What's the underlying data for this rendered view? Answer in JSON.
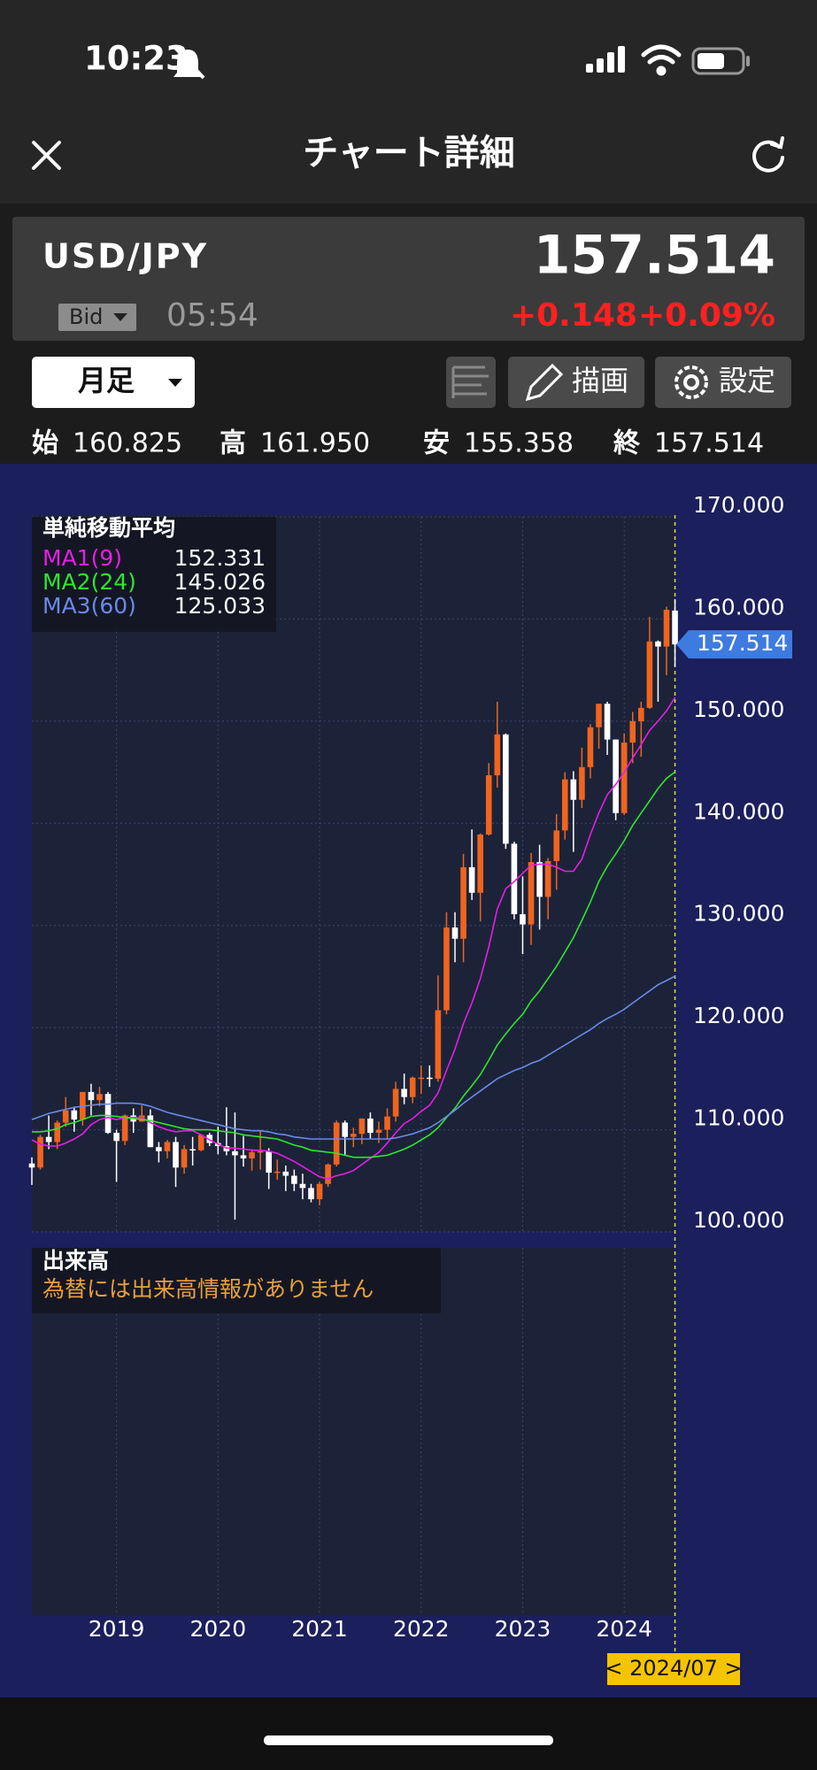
{
  "status_bar": {
    "time": "10:23"
  },
  "header": {
    "title": "チャート詳細"
  },
  "quote": {
    "symbol": "USD/JPY",
    "price": "157.514",
    "side": "Bid",
    "time": "05:54",
    "change": "+0.148",
    "change_pct": "+0.09%"
  },
  "toolbar": {
    "period": "月足",
    "draw": "描画",
    "settings": "設定"
  },
  "ohlc": [
    {
      "label": "始",
      "value": "160.825"
    },
    {
      "label": "高",
      "value": "161.950"
    },
    {
      "label": "安",
      "value": "155.358"
    },
    {
      "label": "終",
      "value": "157.514"
    }
  ],
  "chart_data": {
    "type": "candlestick",
    "legend_title": "単純移動平均",
    "volume_title": "出来高",
    "volume_note": "為替には出来高情報がありません",
    "cursor_label": "< 2024/07 >",
    "up_color": "#f0641e",
    "down_color": "#ffffff",
    "grid": true,
    "ylim": [
      100,
      170
    ],
    "yticks": [
      {
        "value": 100,
        "label": "100.000"
      },
      {
        "value": 110,
        "label": "110.000"
      },
      {
        "value": 120,
        "label": "120.000"
      },
      {
        "value": 130,
        "label": "130.000"
      },
      {
        "value": 140,
        "label": "140.000"
      },
      {
        "value": 150,
        "label": "150.000"
      },
      {
        "value": 160,
        "label": "160.000"
      },
      {
        "value": 170,
        "label": "170.000"
      }
    ],
    "categories": [
      null,
      null,
      null,
      null,
      null,
      null,
      null,
      null,
      null,
      null,
      "2019",
      null,
      null,
      null,
      null,
      null,
      null,
      null,
      null,
      null,
      null,
      null,
      "2020",
      null,
      null,
      null,
      null,
      null,
      null,
      null,
      null,
      null,
      null,
      null,
      "2021",
      null,
      null,
      null,
      null,
      null,
      null,
      null,
      null,
      null,
      null,
      null,
      "2022",
      null,
      null,
      null,
      null,
      null,
      null,
      null,
      null,
      null,
      null,
      null,
      "2023",
      null,
      null,
      null,
      null,
      null,
      null,
      null,
      null,
      null,
      null,
      null,
      "2024",
      null,
      null,
      null,
      null,
      null,
      null
    ],
    "open": [
      106.7,
      106.3,
      109.3,
      108.8,
      110.7,
      111.9,
      111.0,
      113.7,
      112.9,
      113.5,
      109.7,
      108.9,
      111.4,
      110.8,
      111.4,
      108.3,
      107.9,
      108.8,
      106.3,
      108.1,
      108.0,
      109.5,
      108.7,
      108.4,
      107.9,
      107.5,
      107.2,
      107.8,
      107.9,
      105.8,
      105.9,
      105.5,
      104.7,
      104.3,
      103.2,
      104.7,
      106.6,
      110.7,
      109.3,
      109.6,
      111.1,
      109.7,
      110.0,
      111.3,
      114.0,
      113.2,
      115.1,
      115.1,
      115.0,
      121.7,
      129.8,
      128.7,
      135.7,
      133.2,
      138.9,
      144.7,
      148.7,
      138.0,
      131.1,
      130.1,
      136.2,
      132.8,
      136.3,
      139.3,
      144.3,
      142.3,
      145.5,
      149.4,
      151.7,
      148.2,
      141.0,
      147.9,
      150.0,
      151.3,
      157.8,
      157.3,
      160.825
    ],
    "high": [
      107.3,
      109.5,
      111.4,
      110.9,
      113.2,
      112.2,
      113.7,
      114.5,
      114.2,
      113.7,
      110.0,
      111.5,
      112.1,
      112.4,
      112.0,
      108.8,
      109.0,
      109.3,
      108.5,
      109.3,
      109.6,
      109.7,
      110.3,
      112.2,
      111.7,
      109.4,
      108.1,
      109.9,
      108.2,
      107.1,
      106.5,
      106.1,
      105.7,
      104.7,
      104.9,
      106.7,
      110.9,
      110.9,
      110.2,
      111.1,
      111.7,
      110.8,
      112.1,
      114.7,
      115.5,
      115.2,
      116.3,
      116.3,
      125.1,
      131.3,
      131.3,
      137.0,
      139.4,
      139.0,
      145.9,
      151.9,
      148.8,
      138.2,
      134.8,
      137.1,
      137.9,
      136.6,
      140.9,
      145.0,
      145.1,
      147.4,
      149.7,
      151.7,
      151.9,
      148.2,
      148.8,
      150.9,
      151.9,
      160.2,
      157.9,
      161.2,
      161.95
    ],
    "low": [
      104.6,
      106.1,
      108.1,
      108.1,
      110.3,
      109.8,
      110.4,
      111.4,
      112.3,
      109.6,
      104.9,
      108.5,
      109.7,
      110.8,
      108.3,
      106.8,
      107.2,
      104.4,
      105.7,
      106.5,
      107.9,
      108.4,
      107.6,
      107.5,
      101.2,
      106.4,
      106.0,
      106.1,
      104.2,
      105.1,
      104.0,
      104.0,
      103.2,
      102.9,
      102.6,
      104.4,
      106.4,
      107.5,
      108.3,
      108.6,
      109.1,
      108.7,
      109.1,
      110.8,
      112.5,
      112.6,
      113.5,
      114.2,
      114.7,
      121.3,
      126.4,
      126.4,
      132.5,
      130.4,
      138.8,
      143.5,
      137.5,
      130.6,
      127.2,
      128.1,
      129.6,
      130.6,
      133.5,
      138.4,
      137.2,
      141.5,
      144.4,
      147.3,
      146.7,
      140.3,
      140.8,
      145.9,
      146.5,
      151.2,
      151.9,
      154.5,
      155.358
    ],
    "close": [
      106.3,
      109.3,
      108.8,
      110.7,
      111.9,
      111.0,
      113.7,
      112.9,
      113.5,
      109.7,
      108.9,
      111.4,
      110.8,
      111.4,
      108.3,
      107.9,
      108.8,
      106.3,
      108.1,
      108.0,
      109.5,
      108.7,
      108.4,
      107.9,
      107.5,
      107.2,
      107.8,
      107.9,
      105.8,
      105.9,
      105.5,
      104.7,
      104.3,
      103.2,
      104.7,
      106.6,
      110.7,
      109.3,
      109.6,
      111.1,
      109.7,
      110.0,
      111.3,
      114.0,
      113.2,
      115.1,
      115.1,
      115.0,
      121.7,
      129.8,
      128.7,
      135.7,
      133.2,
      138.9,
      144.7,
      148.7,
      138.0,
      131.1,
      130.1,
      136.2,
      132.8,
      136.3,
      139.3,
      144.3,
      142.3,
      145.5,
      149.4,
      151.7,
      148.2,
      141.0,
      147.9,
      150.0,
      151.3,
      157.8,
      157.3,
      160.9,
      157.514
    ],
    "series": [
      {
        "name": "MA1(9)",
        "color": "#e61ee6",
        "values": [
          109.0,
          108.6,
          108.4,
          108.4,
          108.7,
          109.1,
          109.6,
          110.5,
          111.0,
          111.2,
          111.0,
          111.2,
          111.2,
          111.2,
          110.7,
          110.3,
          110.0,
          109.8,
          109.9,
          109.9,
          109.5,
          109.0,
          108.6,
          108.2,
          108.2,
          108.1,
          108.0,
          108.0,
          107.9,
          107.7,
          107.3,
          106.9,
          106.4,
          105.9,
          105.4,
          105.2,
          105.5,
          105.7,
          106.0,
          106.6,
          107.2,
          107.8,
          108.7,
          109.7,
          110.6,
          111.1,
          111.8,
          112.4,
          113.6,
          115.8,
          117.9,
          120.4,
          122.4,
          124.8,
          127.9,
          131.6,
          133.6,
          134.3,
          135.1,
          135.9,
          136.0,
          136.0,
          135.7,
          135.3,
          135.3,
          136.5,
          138.9,
          141.0,
          142.8,
          143.8,
          145.0,
          146.4,
          147.7,
          149.1,
          150.0,
          151.0,
          152.331
        ]
      },
      {
        "name": "MA2(24)",
        "color": "#2ee62e",
        "values": [
          109.8,
          109.8,
          109.9,
          110.1,
          110.5,
          110.7,
          111.0,
          111.3,
          111.4,
          111.4,
          111.3,
          111.2,
          111.1,
          111.0,
          110.9,
          110.7,
          110.5,
          110.3,
          110.1,
          110.0,
          110.0,
          110.0,
          109.9,
          109.8,
          109.7,
          109.5,
          109.4,
          109.3,
          109.2,
          109.1,
          108.8,
          108.5,
          108.3,
          108.0,
          107.9,
          107.8,
          107.7,
          107.5,
          107.3,
          107.3,
          107.3,
          107.4,
          107.5,
          107.8,
          108.1,
          108.5,
          109.0,
          109.5,
          110.2,
          111.2,
          112.1,
          113.3,
          114.3,
          115.4,
          116.8,
          118.3,
          119.4,
          120.4,
          121.3,
          122.6,
          123.6,
          124.8,
          126.0,
          127.4,
          128.8,
          130.5,
          132.3,
          134.3,
          135.8,
          137.0,
          138.3,
          139.8,
          141.0,
          142.2,
          143.4,
          144.4,
          145.026
        ]
      },
      {
        "name": "MA3(60)",
        "color": "#6a8ae8",
        "values": [
          111.0,
          111.3,
          111.6,
          111.8,
          112.0,
          112.2,
          112.3,
          112.4,
          112.5,
          112.5,
          112.6,
          112.6,
          112.6,
          112.5,
          112.3,
          112.0,
          111.7,
          111.5,
          111.3,
          111.1,
          110.9,
          110.7,
          110.5,
          110.3,
          110.1,
          110.0,
          109.9,
          109.9,
          109.8,
          109.6,
          109.5,
          109.3,
          109.2,
          109.1,
          109.1,
          109.1,
          109.1,
          109.1,
          109.1,
          109.1,
          109.1,
          109.1,
          109.1,
          109.2,
          109.4,
          109.6,
          109.9,
          110.2,
          110.7,
          111.3,
          111.9,
          112.6,
          113.2,
          113.8,
          114.4,
          115.0,
          115.4,
          115.8,
          116.1,
          116.5,
          116.8,
          117.3,
          117.8,
          118.3,
          118.8,
          119.3,
          119.8,
          120.4,
          120.9,
          121.3,
          121.8,
          122.4,
          123.0,
          123.6,
          124.2,
          124.6,
          125.033
        ]
      }
    ]
  }
}
